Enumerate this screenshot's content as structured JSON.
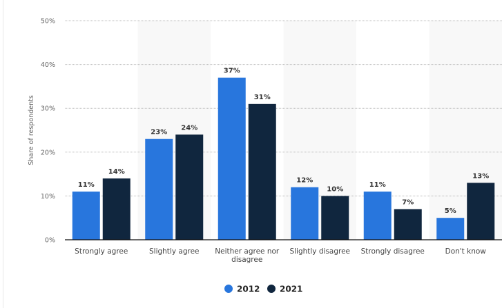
{
  "chart_data": {
    "type": "bar",
    "title": "",
    "xlabel": "",
    "ylabel": "Share of respondents",
    "ylim": [
      0,
      50
    ],
    "yticks": [
      "0%",
      "10%",
      "20%",
      "30%",
      "40%",
      "50%"
    ],
    "grid": true,
    "legend_position": "bottom",
    "categories": [
      "Strongly agree",
      "Slightly agree",
      "Neither agree nor disagree",
      "Slightly disagree",
      "Strongly disagree",
      "Don't know"
    ],
    "series": [
      {
        "name": "2012",
        "color": "#2876dd",
        "values": [
          11,
          23,
          37,
          12,
          11,
          5
        ]
      },
      {
        "name": "2021",
        "color": "#10263e",
        "values": [
          14,
          24,
          31,
          10,
          7,
          13
        ]
      }
    ],
    "value_suffix": "%"
  }
}
